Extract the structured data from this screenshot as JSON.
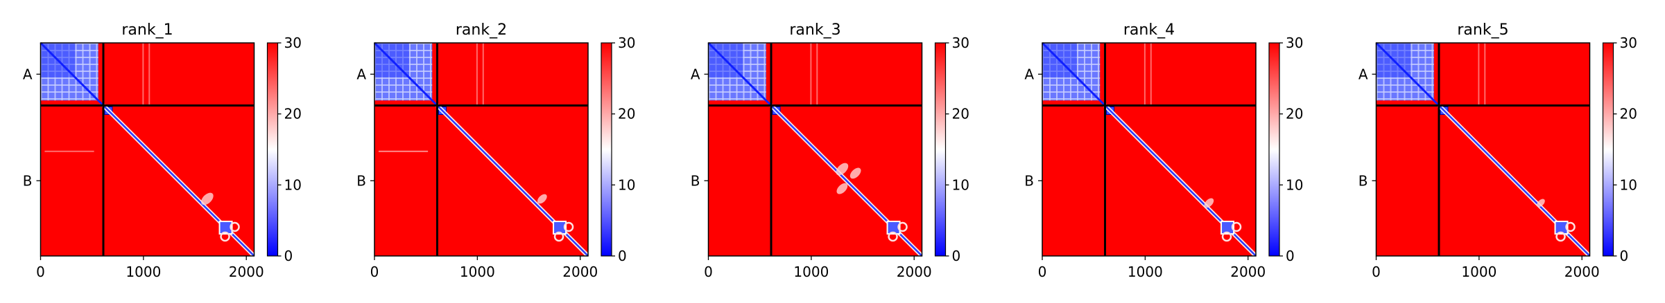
{
  "chart_data": {
    "type": "heatmap",
    "colormap": {
      "low": "#0000ff",
      "mid": "#ffffff",
      "high": "#ff0000"
    },
    "vmin": 0,
    "vmax": 30,
    "colorbar_ticks": [
      "0",
      "10",
      "20",
      "30"
    ],
    "x_ticks": [
      {
        "value": 0,
        "label": "0"
      },
      {
        "value": 1000,
        "label": "1000"
      },
      {
        "value": 2000,
        "label": "2000"
      }
    ],
    "xlim": [
      0,
      2076
    ],
    "ylim": [
      2076,
      0
    ],
    "chain_boundary": 610,
    "y_tick_labels": [
      "A",
      "B"
    ],
    "panels": [
      {
        "title": "rank_1"
      },
      {
        "title": "rank_2"
      },
      {
        "title": "rank_3"
      },
      {
        "title": "rank_4"
      },
      {
        "title": "rank_5"
      }
    ]
  }
}
